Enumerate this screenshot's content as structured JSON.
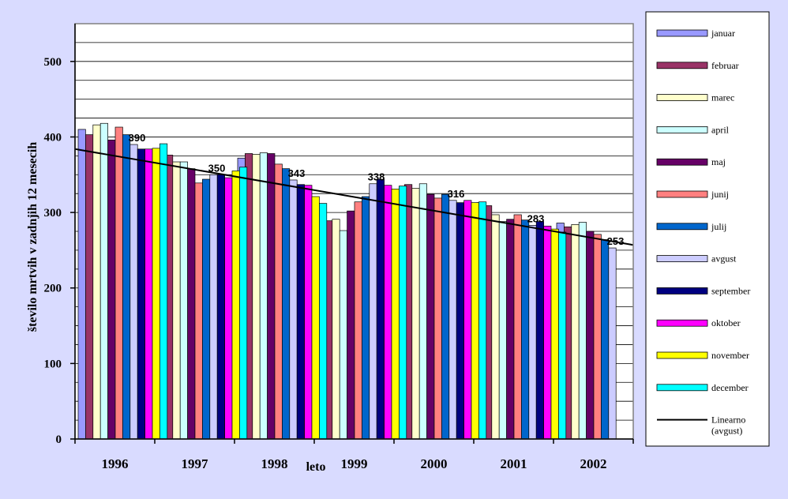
{
  "chart_data": {
    "type": "bar",
    "categories": [
      "1996",
      "1997",
      "1998",
      "1999",
      "2000",
      "2001",
      "2002"
    ],
    "ylabel": "število mrtvih v zadnjih 12 mesecih",
    "xlabel": "leto",
    "ylim": [
      0,
      550
    ],
    "yticks": [
      0,
      100,
      200,
      300,
      400,
      500
    ],
    "grid": true,
    "legend_position": "right",
    "series": [
      {
        "name": "januar",
        "color": "#9999ff",
        "values": [
          410,
          384,
          372,
          301,
          329,
          313,
          286
        ]
      },
      {
        "name": "februar",
        "color": "#993366",
        "values": [
          403,
          376,
          378,
          289,
          337,
          309,
          281
        ]
      },
      {
        "name": "marec",
        "color": "#ffffcc",
        "values": [
          416,
          367,
          377,
          291,
          332,
          297,
          284
        ]
      },
      {
        "name": "april",
        "color": "#ccffff",
        "values": [
          418,
          367,
          379,
          276,
          338,
          288,
          287
        ]
      },
      {
        "name": "maj",
        "color": "#660066",
        "values": [
          396,
          358,
          378,
          302,
          324,
          291,
          275
        ]
      },
      {
        "name": "junij",
        "color": "#ff8080",
        "values": [
          413,
          339,
          364,
          314,
          319,
          297,
          271
        ]
      },
      {
        "name": "julij",
        "color": "#0066cc",
        "values": [
          403,
          344,
          358,
          321,
          324,
          290,
          264
        ]
      },
      {
        "name": "avgust",
        "color": "#ccccff",
        "values": [
          390,
          350,
          343,
          338,
          316,
          283,
          253
        ]
      },
      {
        "name": "september",
        "color": "#000080",
        "values": [
          384,
          350,
          337,
          344,
          313,
          288,
          null
        ]
      },
      {
        "name": "oktober",
        "color": "#ff00ff",
        "values": [
          384,
          346,
          336,
          336,
          316,
          282,
          null
        ]
      },
      {
        "name": "november",
        "color": "#ffff00",
        "values": [
          385,
          355,
          321,
          331,
          313,
          278,
          null
        ]
      },
      {
        "name": "december",
        "color": "#00ffff",
        "values": [
          391,
          360,
          312,
          335,
          314,
          274,
          null
        ]
      }
    ],
    "data_labels": [
      {
        "category": "1996",
        "series": "avgust",
        "text": "390"
      },
      {
        "category": "1997",
        "series": "avgust",
        "text": "350"
      },
      {
        "category": "1998",
        "series": "avgust",
        "text": "343"
      },
      {
        "category": "1999",
        "series": "avgust",
        "text": "338"
      },
      {
        "category": "2000",
        "series": "avgust",
        "text": "316"
      },
      {
        "category": "2001",
        "series": "avgust",
        "text": "283"
      },
      {
        "category": "2002",
        "series": "avgust",
        "text": "253"
      }
    ],
    "trendline": {
      "name": "Linearno (avgust)",
      "series": "avgust",
      "type": "linear",
      "start_value": 384,
      "end_value": 257
    }
  }
}
